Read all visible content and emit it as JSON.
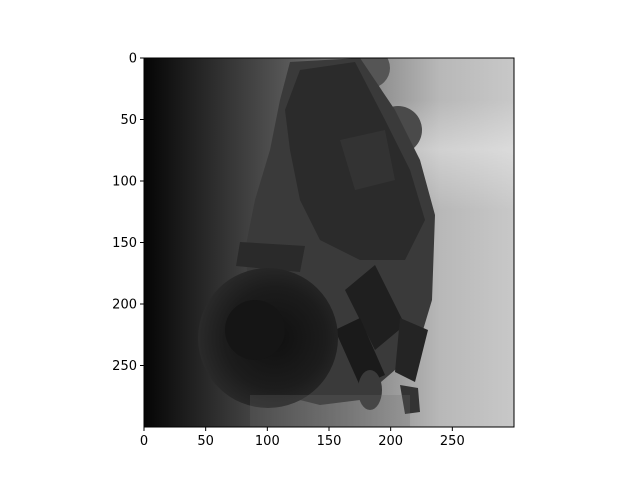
{
  "image": {
    "description_visible": false
  },
  "axes": {
    "x_ticks": [
      "0",
      "50",
      "100",
      "150",
      "200",
      "250"
    ],
    "y_ticks": [
      "0",
      "50",
      "100",
      "150",
      "200",
      "250"
    ],
    "x_range": [
      0,
      300
    ],
    "y_range": [
      0,
      300
    ]
  },
  "colors": {
    "frame": "#000000",
    "background": "#ffffff"
  }
}
